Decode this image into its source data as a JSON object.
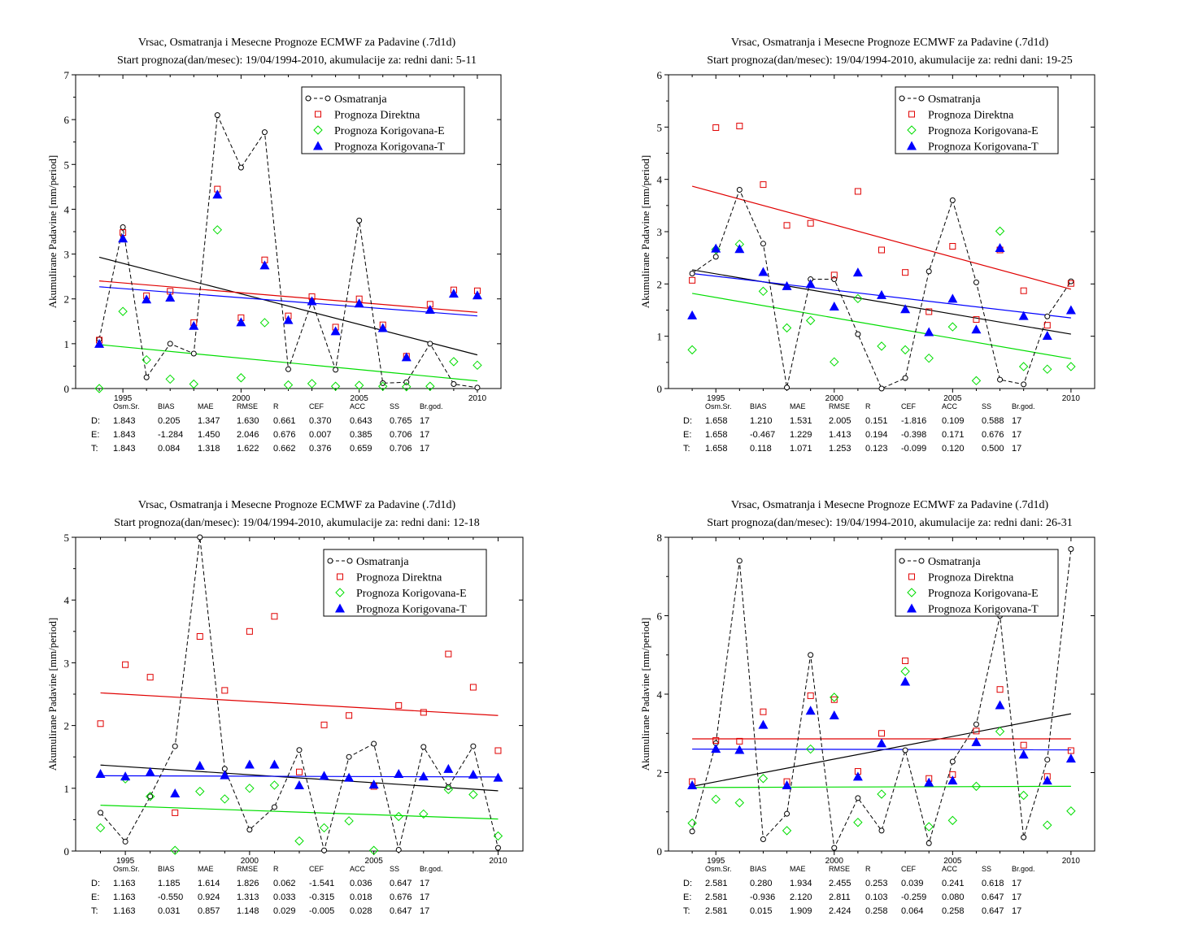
{
  "stats_header": [
    "Osm.Sr.",
    "BIAS",
    "MAE",
    "RMSE",
    "R",
    "CEF",
    "ACC",
    "SS",
    "Br.god."
  ],
  "colors": {
    "obs": "#000000",
    "direct": "#e00000",
    "corrE": "#00dd00",
    "corrT": "#0000ff"
  },
  "chart_data": [
    {
      "id": "c1",
      "type": "scatter",
      "title": "Vrsac, Osmatranja i Mesecne Prognoze ECMWF za Padavine (.7d1d)",
      "subtitle": "Start prognoza(dan/mesec): 19/04/1994-2010, akumulacije za: redni dani: 5-11",
      "xlabel": "",
      "ylabel": "Akumulirane Padavine [mm/period]",
      "xlim": [
        1993,
        2011
      ],
      "ylim": [
        0,
        7
      ],
      "yticks": [
        "0",
        "1",
        "2",
        "3",
        "4",
        "5",
        "6",
        "7"
      ],
      "xticks": [
        "1995",
        "2000",
        "2005",
        "2010"
      ],
      "x": [
        1994,
        1995,
        1996,
        1997,
        1998,
        1999,
        2000,
        2001,
        2002,
        2003,
        2004,
        2005,
        2006,
        2007,
        2008,
        2009,
        2010
      ],
      "legend": [
        "Osmatranja",
        "Prognoza Direktna",
        "Prognoza Korigovana-E",
        "Prognoza Korigovana-T"
      ],
      "legend_position": "top-right",
      "series": [
        {
          "key": "obs",
          "values": [
            1.1,
            3.6,
            0.25,
            1.0,
            0.78,
            6.1,
            4.93,
            5.72,
            0.43,
            1.95,
            0.42,
            3.75,
            0.12,
            0.14,
            1.0,
            0.1,
            0.02
          ],
          "trend": [
            2.93,
            0.75
          ]
        },
        {
          "key": "direct",
          "values": [
            1.08,
            3.48,
            2.07,
            2.17,
            1.47,
            4.45,
            1.58,
            2.87,
            1.62,
            2.05,
            1.37,
            2.0,
            1.42,
            0.72,
            1.88,
            2.2,
            2.18
          ],
          "trend": [
            2.4,
            1.7
          ]
        },
        {
          "key": "corrE",
          "values": [
            0.0,
            1.72,
            0.64,
            0.21,
            0.1,
            3.54,
            0.24,
            1.47,
            0.08,
            0.11,
            0.05,
            0.07,
            0.05,
            0.04,
            0.05,
            0.6,
            0.52
          ],
          "trend": [
            0.98,
            0.17
          ]
        },
        {
          "key": "corrT",
          "values": [
            1.0,
            3.35,
            1.99,
            2.03,
            1.4,
            4.33,
            1.48,
            2.75,
            1.53,
            1.95,
            1.28,
            1.9,
            1.35,
            0.7,
            1.76,
            2.12,
            2.08
          ],
          "trend": [
            2.27,
            1.62
          ]
        }
      ],
      "stats": [
        {
          "label": "D:",
          "key": "direct",
          "values": [
            "1.843",
            "0.205",
            "1.347",
            "1.630",
            "0.661",
            "0.370",
            "0.643",
            "0.765",
            "17"
          ]
        },
        {
          "label": "E:",
          "key": "corrE",
          "values": [
            "1.843",
            "-1.284",
            "1.450",
            "2.046",
            "0.676",
            "0.007",
            "0.385",
            "0.706",
            "17"
          ]
        },
        {
          "label": "T:",
          "key": "corrT",
          "values": [
            "1.843",
            "0.084",
            "1.318",
            "1.622",
            "0.662",
            "0.376",
            "0.659",
            "0.706",
            "17"
          ]
        }
      ]
    },
    {
      "id": "c2",
      "type": "scatter",
      "title": "Vrsac, Osmatranja i Mesecne Prognoze ECMWF za Padavine (.7d1d)",
      "subtitle": "Start prognoza(dan/mesec): 19/04/1994-2010, akumulacije za: redni dani: 19-25",
      "xlabel": "",
      "ylabel": "Akumulirane Padavine [mm/period]",
      "xlim": [
        1993,
        2011
      ],
      "ylim": [
        0,
        6
      ],
      "yticks": [
        "0",
        "1",
        "2",
        "3",
        "4",
        "5",
        "6"
      ],
      "xticks": [
        "1995",
        "2000",
        "2005",
        "2010"
      ],
      "x": [
        1994,
        1995,
        1996,
        1997,
        1998,
        1999,
        2000,
        2001,
        2002,
        2003,
        2004,
        2005,
        2006,
        2007,
        2008,
        2009,
        2010
      ],
      "legend": [
        "Osmatranja",
        "Prognoza Direktna",
        "Prognoza Korigovana-E",
        "Prognoza Korigovana-T"
      ],
      "legend_position": "top-right",
      "series": [
        {
          "key": "obs",
          "values": [
            2.2,
            2.52,
            3.8,
            2.77,
            0.02,
            2.09,
            2.09,
            1.04,
            0.0,
            0.2,
            2.24,
            3.6,
            2.03,
            0.17,
            0.08,
            1.38,
            2.05
          ],
          "trend": [
            2.27,
            1.04
          ]
        },
        {
          "key": "direct",
          "values": [
            2.07,
            4.99,
            5.02,
            3.9,
            3.12,
            3.16,
            2.17,
            3.77,
            2.65,
            2.22,
            1.47,
            2.72,
            1.32,
            2.65,
            1.87,
            1.21,
            2.01
          ],
          "trend": [
            3.87,
            1.9
          ]
        },
        {
          "key": "corrE",
          "values": [
            0.74,
            2.66,
            2.76,
            1.86,
            1.16,
            1.3,
            0.51,
            1.72,
            0.81,
            0.74,
            0.58,
            1.18,
            0.15,
            3.01,
            0.42,
            0.37,
            0.42
          ],
          "trend": [
            1.82,
            0.57
          ]
        },
        {
          "key": "corrT",
          "values": [
            1.4,
            2.68,
            2.67,
            2.23,
            1.96,
            2.0,
            1.57,
            2.22,
            1.79,
            1.52,
            1.08,
            1.72,
            1.13,
            2.69,
            1.39,
            1.01,
            1.5
          ],
          "trend": [
            2.2,
            1.35
          ]
        }
      ],
      "stats": [
        {
          "label": "D:",
          "key": "direct",
          "values": [
            "1.658",
            "1.210",
            "1.531",
            "2.005",
            "0.151",
            "-1.816",
            "0.109",
            "0.588",
            "17"
          ]
        },
        {
          "label": "E:",
          "key": "corrE",
          "values": [
            "1.658",
            "-0.467",
            "1.229",
            "1.413",
            "0.194",
            "-0.398",
            "0.171",
            "0.676",
            "17"
          ]
        },
        {
          "label": "T:",
          "key": "corrT",
          "values": [
            "1.658",
            "0.118",
            "1.071",
            "1.253",
            "0.123",
            "-0.099",
            "0.120",
            "0.500",
            "17"
          ]
        }
      ]
    },
    {
      "id": "c3",
      "type": "scatter",
      "title": "Vrsac, Osmatranja i Mesecne Prognoze ECMWF za Padavine (.7d1d)",
      "subtitle": "Start prognoza(dan/mesec): 19/04/1994-2010, akumulacije za: redni dani: 12-18",
      "xlabel": "",
      "ylabel": "Akumulirane Padavine [mm/period]",
      "xlim": [
        1993,
        2011
      ],
      "ylim": [
        0,
        5
      ],
      "yticks": [
        "0",
        "1",
        "2",
        "3",
        "4",
        "5"
      ],
      "xticks": [
        "1995",
        "2000",
        "2005",
        "2010"
      ],
      "x": [
        1994,
        1995,
        1996,
        1997,
        1998,
        1999,
        2000,
        2001,
        2002,
        2003,
        2004,
        2005,
        2006,
        2007,
        2008,
        2009,
        2010
      ],
      "legend": [
        "Osmatranja",
        "Prognoza Direktna",
        "Prognoza Korigovana-E",
        "Prognoza Korigovana-T"
      ],
      "legend_position": "top-right",
      "series": [
        {
          "key": "obs",
          "values": [
            0.61,
            0.15,
            0.87,
            1.67,
            5.0,
            1.31,
            0.34,
            0.7,
            1.61,
            0.01,
            1.5,
            1.71,
            0.02,
            1.66,
            1.02,
            1.67,
            0.05
          ],
          "trend": [
            1.37,
            0.96
          ]
        },
        {
          "key": "direct",
          "values": [
            2.03,
            2.97,
            2.77,
            0.61,
            3.42,
            2.56,
            3.5,
            3.74,
            1.26,
            2.01,
            2.16,
            1.03,
            2.32,
            2.21,
            3.14,
            2.61,
            1.6
          ],
          "trend": [
            2.52,
            2.16
          ]
        },
        {
          "key": "corrE",
          "values": [
            0.37,
            1.15,
            0.87,
            0.01,
            0.95,
            0.83,
            1.0,
            1.05,
            0.16,
            0.37,
            0.48,
            0.01,
            0.55,
            0.59,
            0.98,
            0.9,
            0.24
          ],
          "trend": [
            0.73,
            0.51
          ]
        },
        {
          "key": "corrT",
          "values": [
            1.23,
            1.19,
            1.26,
            0.92,
            1.36,
            1.21,
            1.38,
            1.38,
            1.05,
            1.2,
            1.17,
            1.06,
            1.23,
            1.19,
            1.31,
            1.22,
            1.17
          ],
          "trend": [
            1.2,
            1.18
          ]
        }
      ],
      "stats": [
        {
          "label": "D:",
          "key": "direct",
          "values": [
            "1.163",
            "1.185",
            "1.614",
            "1.826",
            "0.062",
            "-1.541",
            "0.036",
            "0.647",
            "17"
          ]
        },
        {
          "label": "E:",
          "key": "corrE",
          "values": [
            "1.163",
            "-0.550",
            "0.924",
            "1.313",
            "0.033",
            "-0.315",
            "0.018",
            "0.676",
            "17"
          ]
        },
        {
          "label": "T:",
          "key": "corrT",
          "values": [
            "1.163",
            "0.031",
            "0.857",
            "1.148",
            "0.029",
            "-0.005",
            "0.028",
            "0.647",
            "17"
          ]
        }
      ]
    },
    {
      "id": "c4",
      "type": "scatter",
      "title": "Vrsac, Osmatranja i Mesecne Prognoze ECMWF za Padavine (.7d1d)",
      "subtitle": "Start prognoza(dan/mesec): 19/04/1994-2010, akumulacije za: redni dani: 26-31",
      "xlabel": "",
      "ylabel": "Akumulirane Padavine [mm/period]",
      "xlim": [
        1993,
        2011
      ],
      "ylim": [
        0,
        8
      ],
      "yticks": [
        "0",
        "2",
        "4",
        "6",
        "8"
      ],
      "xticks": [
        "1995",
        "2000",
        "2005",
        "2010"
      ],
      "x": [
        1994,
        1995,
        1996,
        1997,
        1998,
        1999,
        2000,
        2001,
        2002,
        2003,
        2004,
        2005,
        2006,
        2007,
        2008,
        2009,
        2010
      ],
      "legend": [
        "Osmatranja",
        "Prognoza Direktna",
        "Prognoza Korigovana-E",
        "Prognoza Korigovana-T"
      ],
      "legend_position": "top-right",
      "series": [
        {
          "key": "obs",
          "values": [
            0.5,
            2.75,
            7.4,
            0.3,
            0.95,
            5.0,
            0.08,
            1.35,
            0.52,
            2.57,
            0.2,
            2.28,
            3.23,
            6.0,
            0.35,
            2.33,
            7.7
          ],
          "trend": [
            1.65,
            3.5
          ]
        },
        {
          "key": "direct",
          "values": [
            1.77,
            2.82,
            2.8,
            3.55,
            1.77,
            3.96,
            3.86,
            2.03,
            3.0,
            4.85,
            1.85,
            1.95,
            3.06,
            4.12,
            2.7,
            1.9,
            2.56
          ],
          "trend": [
            2.86,
            2.86
          ]
        },
        {
          "key": "corrE",
          "values": [
            0.71,
            1.32,
            1.23,
            1.85,
            0.52,
            2.6,
            3.92,
            0.73,
            1.45,
            4.58,
            0.62,
            0.78,
            1.65,
            3.05,
            1.42,
            0.66,
            1.02
          ],
          "trend": [
            1.62,
            1.65
          ]
        },
        {
          "key": "corrT",
          "values": [
            1.68,
            2.61,
            2.58,
            3.22,
            1.68,
            3.58,
            3.46,
            1.9,
            2.75,
            4.32,
            1.75,
            1.8,
            2.78,
            3.72,
            2.46,
            1.8,
            2.36
          ],
          "trend": [
            2.6,
            2.58
          ]
        }
      ],
      "stats": [
        {
          "label": "D:",
          "key": "direct",
          "values": [
            "2.581",
            "0.280",
            "1.934",
            "2.455",
            "0.253",
            "0.039",
            "0.241",
            "0.618",
            "17"
          ]
        },
        {
          "label": "E:",
          "key": "corrE",
          "values": [
            "2.581",
            "-0.936",
            "2.120",
            "2.811",
            "0.103",
            "-0.259",
            "0.080",
            "0.647",
            "17"
          ]
        },
        {
          "label": "T:",
          "key": "corrT",
          "values": [
            "2.581",
            "0.015",
            "1.909",
            "2.424",
            "0.258",
            "0.064",
            "0.258",
            "0.647",
            "17"
          ]
        }
      ]
    }
  ]
}
